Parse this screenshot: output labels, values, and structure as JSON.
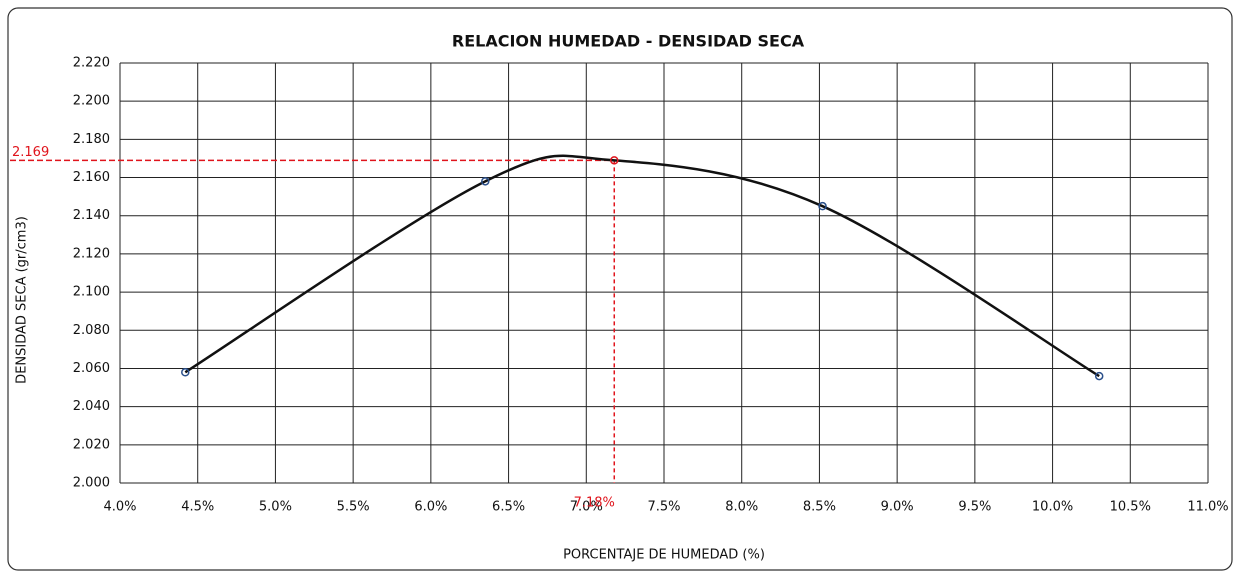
{
  "chart_data": {
    "type": "scatter",
    "title": "RELACION HUMEDAD - DENSIDAD SECA",
    "x_label": "PORCENTAJE DE HUMEDAD  (%)",
    "y_label": "DENSIDAD SECA (gr/cm3)",
    "xlim": [
      4.0,
      11.0
    ],
    "xticks": [
      {
        "value": 4.0,
        "label": "4.0%"
      },
      {
        "value": 4.5,
        "label": "4.5%"
      },
      {
        "value": 5.0,
        "label": "5.0%"
      },
      {
        "value": 5.5,
        "label": "5.5%"
      },
      {
        "value": 6.0,
        "label": "6.0%"
      },
      {
        "value": 6.5,
        "label": "6.5%"
      },
      {
        "value": 7.0,
        "label": "7.0%"
      },
      {
        "value": 7.5,
        "label": "7.5%"
      },
      {
        "value": 8.0,
        "label": "8.0%"
      },
      {
        "value": 8.5,
        "label": "8.5%"
      },
      {
        "value": 9.0,
        "label": "9.0%"
      },
      {
        "value": 9.5,
        "label": "9.5%"
      },
      {
        "value": 10.0,
        "label": "10.0%"
      },
      {
        "value": 10.5,
        "label": "10.5%"
      },
      {
        "value": 11.0,
        "label": "11.0%"
      }
    ],
    "ylim": [
      2.0,
      2.22
    ],
    "yticks": [
      {
        "value": 2.0,
        "label": "2.000"
      },
      {
        "value": 2.02,
        "label": "2.020"
      },
      {
        "value": 2.04,
        "label": "2.040"
      },
      {
        "value": 2.06,
        "label": "2.060"
      },
      {
        "value": 2.08,
        "label": "2.080"
      },
      {
        "value": 2.1,
        "label": "2.100"
      },
      {
        "value": 2.12,
        "label": "2.120"
      },
      {
        "value": 2.14,
        "label": "2.140"
      },
      {
        "value": 2.16,
        "label": "2.160"
      },
      {
        "value": 2.18,
        "label": "2.180"
      },
      {
        "value": 2.2,
        "label": "2.200"
      },
      {
        "value": 2.22,
        "label": "2.220"
      }
    ],
    "grid": true,
    "series": [
      {
        "color": "#2a4f8a",
        "x": [
          4.42,
          6.35,
          8.52,
          10.3
        ],
        "values": [
          2.058,
          2.158,
          2.145,
          2.056
        ]
      }
    ],
    "max": {
      "x": 7.18,
      "y": 2.169,
      "x_label": "7.18%",
      "y_label": "2.169",
      "color": "#e0141c"
    },
    "curve_color": "#111111"
  }
}
